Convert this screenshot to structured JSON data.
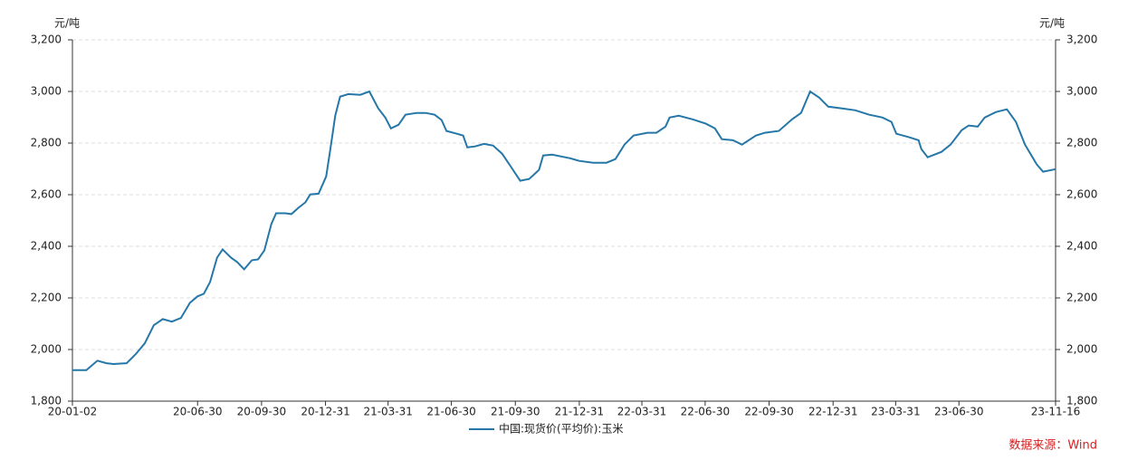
{
  "chart_data": {
    "type": "line",
    "y_unit": "元/吨",
    "source": "数据来源：Wind",
    "x": [
      "20-01-02",
      "20-01-22",
      "20-02-07",
      "20-02-20",
      "20-03-01",
      "20-03-20",
      "20-04-02",
      "20-04-15",
      "20-04-28",
      "20-05-11",
      "20-05-24",
      "20-06-06",
      "20-06-19",
      "20-06-30",
      "20-07-09",
      "20-07-18",
      "20-07-28",
      "20-08-05",
      "20-08-17",
      "20-08-26",
      "20-09-05",
      "20-09-16",
      "20-09-25",
      "20-10-04",
      "20-10-14",
      "20-10-21",
      "20-11-03",
      "20-11-12",
      "20-11-22",
      "20-12-02",
      "20-12-09",
      "20-12-21",
      "21-01-01",
      "21-01-07",
      "21-01-14",
      "21-01-21",
      "21-02-02",
      "21-02-19",
      "21-03-04",
      "21-03-17",
      "21-03-27",
      "21-04-04",
      "21-04-15",
      "21-04-25",
      "21-05-11",
      "21-05-24",
      "21-06-06",
      "21-06-16",
      "21-06-23",
      "21-07-08",
      "21-07-17",
      "21-07-23",
      "21-08-03",
      "21-08-16",
      "21-08-29",
      "21-09-11",
      "21-09-24",
      "21-10-07",
      "21-10-20",
      "21-11-03",
      "21-11-09",
      "21-11-22",
      "21-12-05",
      "21-12-18",
      "21-12-31",
      "22-01-20",
      "22-02-08",
      "22-02-21",
      "22-03-06",
      "22-03-19",
      "22-04-08",
      "22-04-21",
      "22-05-04",
      "22-05-10",
      "22-05-23",
      "22-06-12",
      "22-07-01",
      "22-07-14",
      "22-07-24",
      "22-08-09",
      "22-08-22",
      "22-09-11",
      "22-09-24",
      "22-10-14",
      "22-11-02",
      "22-11-15",
      "22-11-28",
      "22-12-11",
      "22-12-24",
      "23-01-13",
      "23-02-01",
      "23-02-21",
      "23-03-12",
      "23-03-25",
      "23-04-01",
      "23-04-20",
      "23-05-03",
      "23-05-07",
      "23-05-16",
      "23-06-05",
      "23-06-18",
      "23-07-04",
      "23-07-14",
      "23-07-27",
      "23-08-06",
      "23-08-22",
      "23-09-07",
      "23-09-20",
      "23-10-03",
      "23-10-20",
      "23-10-29",
      "23-11-16"
    ],
    "series": [
      {
        "name": "中国:现货价(平均价):玉米",
        "color": "#2577a8",
        "values": [
          1920,
          1920,
          1957,
          1947,
          1944,
          1947,
          1982,
          2024,
          2094,
          2118,
          2108,
          2122,
          2181,
          2206,
          2216,
          2262,
          2356,
          2388,
          2356,
          2339,
          2311,
          2346,
          2349,
          2384,
          2486,
          2528,
          2528,
          2525,
          2549,
          2570,
          2601,
          2604,
          2671,
          2776,
          2906,
          2980,
          2990,
          2987,
          3000,
          2934,
          2899,
          2857,
          2871,
          2910,
          2917,
          2917,
          2910,
          2889,
          2847,
          2836,
          2829,
          2783,
          2787,
          2797,
          2790,
          2759,
          2707,
          2654,
          2661,
          2696,
          2752,
          2755,
          2748,
          2741,
          2731,
          2724,
          2724,
          2738,
          2794,
          2829,
          2840,
          2840,
          2864,
          2899,
          2906,
          2892,
          2875,
          2857,
          2815,
          2811,
          2794,
          2829,
          2840,
          2847,
          2892,
          2917,
          3000,
          2976,
          2941,
          2934,
          2927,
          2910,
          2899,
          2882,
          2836,
          2822,
          2811,
          2776,
          2745,
          2766,
          2794,
          2850,
          2868,
          2864,
          2899,
          2920,
          2931,
          2882,
          2794,
          2717,
          2689,
          2699
        ]
      }
    ],
    "xlim": [
      "20-01-02",
      "23-11-16"
    ],
    "xticks": [
      "20-01-02",
      "20-06-30",
      "20-09-30",
      "20-12-31",
      "21-03-31",
      "21-06-30",
      "21-09-30",
      "21-12-31",
      "22-03-31",
      "22-06-30",
      "22-09-30",
      "22-12-31",
      "23-03-31",
      "23-06-30",
      "23-11-16"
    ],
    "ylim": [
      1800,
      3200
    ],
    "yticks": [
      {
        "value": 1800,
        "label": "1,800"
      },
      {
        "value": 2000,
        "label": "2,000"
      },
      {
        "value": 2200,
        "label": "2,200"
      },
      {
        "value": 2400,
        "label": "2,400"
      },
      {
        "value": 2600,
        "label": "2,600"
      },
      {
        "value": 2800,
        "label": "2,800"
      },
      {
        "value": 3000,
        "label": "3,000"
      },
      {
        "value": 3200,
        "label": "3,200"
      }
    ],
    "grid": true
  }
}
